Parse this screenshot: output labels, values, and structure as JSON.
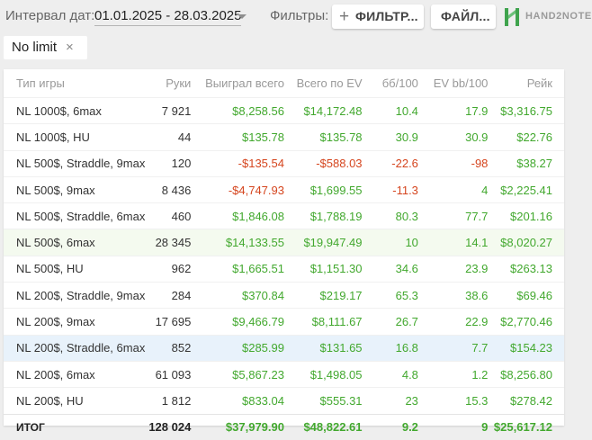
{
  "header": {
    "interval_label": "Интервал дат:",
    "date_range": "01.01.2025 - 28.03.2025",
    "filters_label": "Фильтры:",
    "filter_button": "ФИЛЬТР...",
    "file_button": "ФАЙЛ...",
    "logo_text": "HAND2NOTE"
  },
  "chip": {
    "label": "No limit",
    "close": "×"
  },
  "colors": {
    "positive": "#42a82e",
    "negative": "#d5451e",
    "highlight_green": "#f4faef",
    "highlight_blue": "#e8f2fb",
    "logo_green": "#3fa34d"
  },
  "table": {
    "columns": [
      "Тип игры",
      "Руки",
      "Выиграл всего",
      "Всего по EV",
      "бб/100",
      "EV bb/100",
      "Рейк"
    ],
    "rows": [
      {
        "type": "NL 1000$, 6max",
        "hands": "7 921",
        "won": "$8,258.56",
        "ev": "$14,172.48",
        "bb100": "10.4",
        "evbb": "17.9",
        "rake": "$3,316.75"
      },
      {
        "type": "NL 1000$, HU",
        "hands": "44",
        "won": "$135.78",
        "ev": "$135.78",
        "bb100": "30.9",
        "evbb": "30.9",
        "rake": "$22.76"
      },
      {
        "type": "NL 500$, Straddle, 9max",
        "hands": "120",
        "won": "-$135.54",
        "ev": "-$588.03",
        "bb100": "-22.6",
        "evbb": "-98",
        "rake": "$38.27"
      },
      {
        "type": "NL 500$, 9max",
        "hands": "8 436",
        "won": "-$4,747.93",
        "ev": "$1,699.55",
        "bb100": "-11.3",
        "evbb": "4",
        "rake": "$2,225.41"
      },
      {
        "type": "NL 500$, Straddle, 6max",
        "hands": "460",
        "won": "$1,846.08",
        "ev": "$1,788.19",
        "bb100": "80.3",
        "evbb": "77.7",
        "rake": "$201.16"
      },
      {
        "type": "NL 500$, 6max",
        "hands": "28 345",
        "won": "$14,133.55",
        "ev": "$19,947.49",
        "bb100": "10",
        "evbb": "14.1",
        "rake": "$8,020.27"
      },
      {
        "type": "NL 500$, HU",
        "hands": "962",
        "won": "$1,665.51",
        "ev": "$1,151.30",
        "bb100": "34.6",
        "evbb": "23.9",
        "rake": "$263.13"
      },
      {
        "type": "NL 200$, Straddle, 9max",
        "hands": "284",
        "won": "$370.84",
        "ev": "$219.17",
        "bb100": "65.3",
        "evbb": "38.6",
        "rake": "$69.46"
      },
      {
        "type": "NL 200$, 9max",
        "hands": "17 695",
        "won": "$9,466.79",
        "ev": "$8,111.67",
        "bb100": "26.7",
        "evbb": "22.9",
        "rake": "$2,770.46"
      },
      {
        "type": "NL 200$, Straddle, 6max",
        "hands": "852",
        "won": "$285.99",
        "ev": "$131.65",
        "bb100": "16.8",
        "evbb": "7.7",
        "rake": "$154.23"
      },
      {
        "type": "NL 200$, 6max",
        "hands": "61 093",
        "won": "$5,867.23",
        "ev": "$1,498.05",
        "bb100": "4.8",
        "evbb": "1.2",
        "rake": "$8,256.80"
      },
      {
        "type": "NL 200$, HU",
        "hands": "1 812",
        "won": "$833.04",
        "ev": "$555.31",
        "bb100": "23",
        "evbb": "15.3",
        "rake": "$278.42"
      }
    ],
    "total": {
      "type": "ИТОГ",
      "hands": "128 024",
      "won": "$37,979.90",
      "ev": "$48,822.61",
      "bb100": "9.2",
      "evbb": "9",
      "rake": "$25,617.12"
    }
  }
}
